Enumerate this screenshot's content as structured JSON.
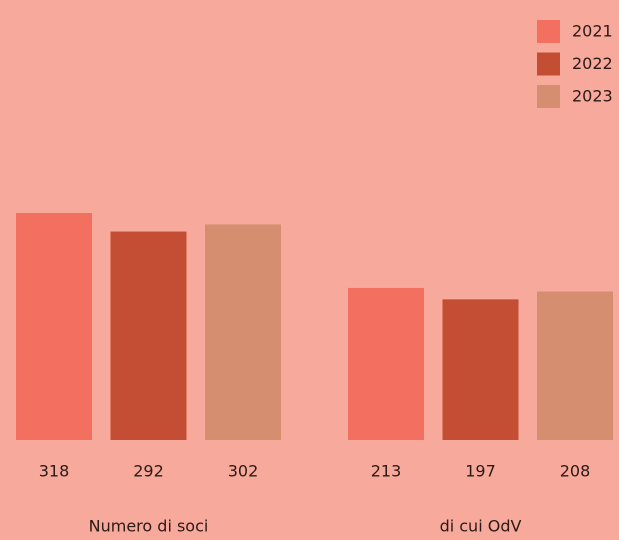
{
  "chart_data": {
    "type": "bar",
    "categories": [
      "Numero di soci",
      "di cui OdV"
    ],
    "series": [
      {
        "name": "2021",
        "color": "#f37060",
        "values": [
          318,
          213
        ]
      },
      {
        "name": "2022",
        "color": "#c44e33",
        "values": [
          292,
          197
        ]
      },
      {
        "name": "2023",
        "color": "#d68e71",
        "values": [
          302,
          208
        ]
      }
    ],
    "legend": "top-right"
  }
}
